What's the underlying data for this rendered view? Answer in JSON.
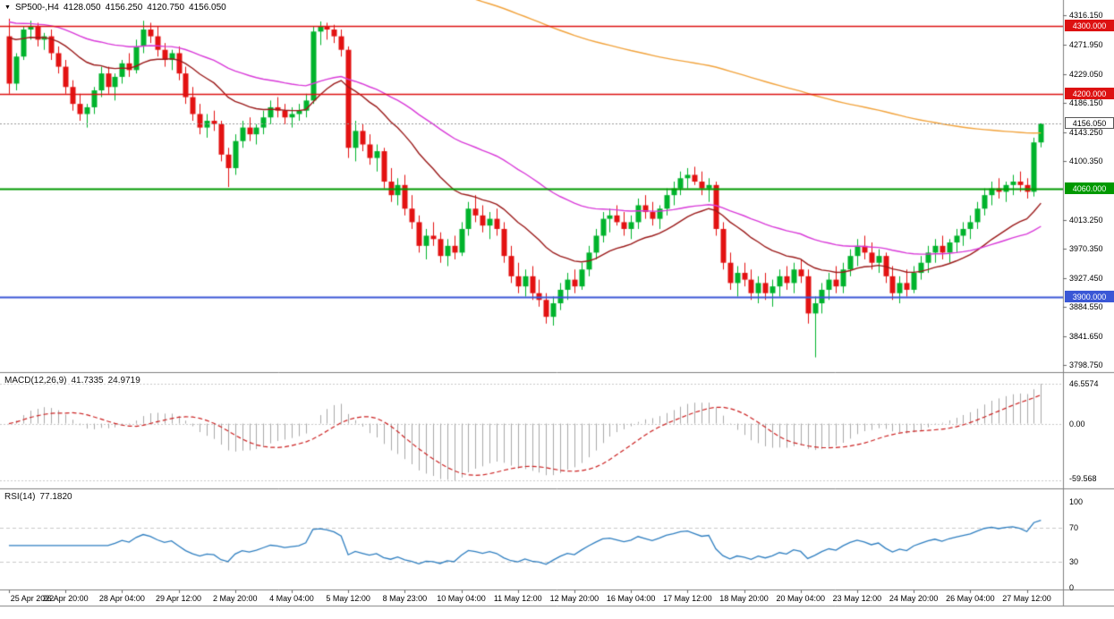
{
  "header": {
    "menu_icon": "▼",
    "symbol": "SP500-,H4",
    "open": "4128.050",
    "high": "4156.250",
    "low": "4120.750",
    "close": "4156.050"
  },
  "indicators": {
    "macd": {
      "label": "MACD(12,26,9)",
      "main_value": "41.7335",
      "signal_value": "24.9719"
    },
    "rsi": {
      "label": "RSI(14)",
      "value": "77.1820"
    }
  },
  "chart_data": {
    "type": "candlestick",
    "symbol": "SP500-,H4",
    "timeframe": "H4",
    "price_range": [
      3788.2,
      4338.7
    ],
    "last_price": 4156.05,
    "candle_colors": {
      "up": "#00b32c",
      "down": "#e31212"
    },
    "y_axis": {
      "ticks": [
        "4316.150",
        "4271.950",
        "4229.050",
        "4186.150",
        "4143.250",
        "4100.350",
        "4013.250",
        "3970.350",
        "3927.450",
        "3884.550",
        "3841.650",
        "3798.750"
      ],
      "badges": [
        {
          "text": "4300.000",
          "value": 4300,
          "bg": "#dd1111",
          "fg": "#ffffff",
          "border": "#dd1111"
        },
        {
          "text": "4200.000",
          "value": 4200,
          "bg": "#dd1111",
          "fg": "#ffffff",
          "border": "#dd1111"
        },
        {
          "text": "4156.050",
          "value": 4156.05,
          "bg": "#ffffff",
          "fg": "#000000",
          "border": "#555555"
        },
        {
          "text": "4060.000",
          "value": 4060,
          "bg": "#009900",
          "fg": "#ffffff",
          "border": "#009900"
        },
        {
          "text": "3900.000",
          "value": 3900,
          "bg": "#3a57d6",
          "fg": "#ffffff",
          "border": "#3a57d6"
        }
      ]
    },
    "x_labels": [
      "25 Apr 2022",
      "26 Apr 20:00",
      "28 Apr 04:00",
      "29 Apr 12:00",
      "2 May 20:00",
      "4 May 04:00",
      "5 May 12:00",
      "8 May 23:00",
      "10 May 04:00",
      "11 May 12:00",
      "12 May 20:00",
      "16 May 04:00",
      "17 May 12:00",
      "18 May 20:00",
      "20 May 04:00",
      "23 May 12:00",
      "24 May 20:00",
      "26 May 04:00",
      "27 May 12:00"
    ],
    "x_label_stride_bars": 8,
    "hlines": [
      {
        "value": 4300,
        "color": "#dd1111",
        "width": 1.5
      },
      {
        "value": 4200,
        "color": "#dd1111",
        "width": 1.5
      },
      {
        "value": 4060,
        "color": "#009900",
        "width": 2
      },
      {
        "value": 3900,
        "color": "#3a57d6",
        "width": 2
      }
    ],
    "moving_averages": [
      {
        "name": "ma-fast",
        "period": 20,
        "seed": 4290,
        "color": "#9b1a1a"
      },
      {
        "name": "ma-medium",
        "period": 50,
        "seed": 4310,
        "color": "#d93ad9"
      },
      {
        "name": "ma-slow",
        "period": 200,
        "seed": 4520,
        "color": "#f2a33c"
      }
    ],
    "macd": {
      "fast": 12,
      "slow": 26,
      "signal_period": 9,
      "hist_color": "#a9a9a9",
      "signal_color": "#cc2222",
      "ticks": {
        "top": "46.5574",
        "zero": "0.00",
        "bottom": "-59.568"
      }
    },
    "rsi": {
      "period": 14,
      "color": "#2f7fc1",
      "levels": [
        70,
        30
      ],
      "ticks": [
        "100",
        "70",
        "30",
        "0"
      ],
      "range": [
        0,
        100
      ]
    },
    "candles": [
      [
        4285,
        4311,
        4200,
        4215
      ],
      [
        4215,
        4260,
        4205,
        4255
      ],
      [
        4255,
        4300,
        4250,
        4295
      ],
      [
        4295,
        4308,
        4280,
        4300
      ],
      [
        4300,
        4305,
        4270,
        4280
      ],
      [
        4280,
        4290,
        4265,
        4285
      ],
      [
        4285,
        4295,
        4250,
        4260
      ],
      [
        4260,
        4270,
        4230,
        4240
      ],
      [
        4240,
        4250,
        4200,
        4210
      ],
      [
        4210,
        4220,
        4175,
        4185
      ],
      [
        4185,
        4200,
        4160,
        4170
      ],
      [
        4170,
        4185,
        4150,
        4180
      ],
      [
        4180,
        4210,
        4170,
        4205
      ],
      [
        4205,
        4240,
        4195,
        4230
      ],
      [
        4230,
        4240,
        4200,
        4210
      ],
      [
        4210,
        4230,
        4190,
        4225
      ],
      [
        4225,
        4250,
        4215,
        4245
      ],
      [
        4245,
        4260,
        4225,
        4235
      ],
      [
        4235,
        4280,
        4230,
        4270
      ],
      [
        4270,
        4308,
        4260,
        4295
      ],
      [
        4295,
        4305,
        4275,
        4285
      ],
      [
        4285,
        4300,
        4255,
        4265
      ],
      [
        4265,
        4275,
        4240,
        4250
      ],
      [
        4250,
        4265,
        4235,
        4260
      ],
      [
        4260,
        4270,
        4220,
        4230
      ],
      [
        4230,
        4240,
        4185,
        4195
      ],
      [
        4195,
        4210,
        4160,
        4170
      ],
      [
        4170,
        4185,
        4140,
        4150
      ],
      [
        4150,
        4170,
        4135,
        4160
      ],
      [
        4160,
        4175,
        4145,
        4155
      ],
      [
        4155,
        4160,
        4100,
        4110
      ],
      [
        4110,
        4120,
        4062,
        4090
      ],
      [
        4090,
        4140,
        4080,
        4130
      ],
      [
        4130,
        4160,
        4120,
        4150
      ],
      [
        4150,
        4165,
        4130,
        4140
      ],
      [
        4140,
        4155,
        4125,
        4150
      ],
      [
        4150,
        4175,
        4140,
        4165
      ],
      [
        4165,
        4190,
        4155,
        4180
      ],
      [
        4180,
        4195,
        4165,
        4175
      ],
      [
        4175,
        4185,
        4155,
        4165
      ],
      [
        4165,
        4180,
        4150,
        4170
      ],
      [
        4170,
        4185,
        4160,
        4175
      ],
      [
        4175,
        4200,
        4165,
        4190
      ],
      [
        4190,
        4300,
        4185,
        4292
      ],
      [
        4292,
        4307,
        4272,
        4300
      ],
      [
        4300,
        4305,
        4280,
        4295
      ],
      [
        4295,
        4302,
        4275,
        4285
      ],
      [
        4285,
        4295,
        4255,
        4265
      ],
      [
        4265,
        4270,
        4105,
        4120
      ],
      [
        4120,
        4160,
        4100,
        4145
      ],
      [
        4145,
        4155,
        4115,
        4125
      ],
      [
        4125,
        4140,
        4095,
        4105
      ],
      [
        4105,
        4125,
        4085,
        4115
      ],
      [
        4115,
        4120,
        4060,
        4070
      ],
      [
        4070,
        4090,
        4040,
        4050
      ],
      [
        4050,
        4075,
        4035,
        4065
      ],
      [
        4065,
        4080,
        4020,
        4030
      ],
      [
        4030,
        4050,
        4000,
        4010
      ],
      [
        4010,
        4020,
        3965,
        3975
      ],
      [
        3975,
        4000,
        3955,
        3990
      ],
      [
        3990,
        4010,
        3975,
        3985
      ],
      [
        3985,
        3995,
        3950,
        3960
      ],
      [
        3960,
        3985,
        3945,
        3975
      ],
      [
        3975,
        3990,
        3955,
        3965
      ],
      [
        3965,
        4010,
        3960,
        4000
      ],
      [
        4000,
        4040,
        3990,
        4030
      ],
      [
        4030,
        4050,
        4010,
        4020
      ],
      [
        4020,
        4035,
        3995,
        4005
      ],
      [
        4005,
        4025,
        3985,
        4015
      ],
      [
        4015,
        4030,
        3990,
        4000
      ],
      [
        4000,
        4010,
        3950,
        3960
      ],
      [
        3960,
        3975,
        3920,
        3930
      ],
      [
        3930,
        3950,
        3905,
        3915
      ],
      [
        3915,
        3940,
        3900,
        3930
      ],
      [
        3930,
        3945,
        3895,
        3905
      ],
      [
        3905,
        3925,
        3885,
        3895
      ],
      [
        3895,
        3905,
        3860,
        3870
      ],
      [
        3870,
        3900,
        3857,
        3890
      ],
      [
        3890,
        3920,
        3880,
        3910
      ],
      [
        3910,
        3935,
        3895,
        3925
      ],
      [
        3925,
        3940,
        3905,
        3915
      ],
      [
        3915,
        3950,
        3910,
        3940
      ],
      [
        3940,
        3975,
        3930,
        3965
      ],
      [
        3965,
        4000,
        3955,
        3990
      ],
      [
        3990,
        4025,
        3980,
        4015
      ],
      [
        4015,
        4030,
        3995,
        4020
      ],
      [
        4020,
        4035,
        4005,
        4010
      ],
      [
        4010,
        4025,
        3990,
        4000
      ],
      [
        4000,
        4020,
        3985,
        4010
      ],
      [
        4010,
        4045,
        4000,
        4035
      ],
      [
        4035,
        4050,
        4015,
        4025
      ],
      [
        4025,
        4040,
        4005,
        4015
      ],
      [
        4015,
        4035,
        4000,
        4030
      ],
      [
        4030,
        4060,
        4020,
        4050
      ],
      [
        4050,
        4070,
        4035,
        4060
      ],
      [
        4060,
        4085,
        4050,
        4075
      ],
      [
        4075,
        4090,
        4060,
        4080
      ],
      [
        4080,
        4092,
        4065,
        4070
      ],
      [
        4070,
        4085,
        4050,
        4060
      ],
      [
        4060,
        4075,
        4040,
        4065
      ],
      [
        4065,
        4070,
        3990,
        4000
      ],
      [
        4000,
        4010,
        3940,
        3950
      ],
      [
        3950,
        3965,
        3910,
        3920
      ],
      [
        3920,
        3945,
        3900,
        3935
      ],
      [
        3935,
        3950,
        3915,
        3925
      ],
      [
        3925,
        3940,
        3895,
        3905
      ],
      [
        3905,
        3930,
        3890,
        3920
      ],
      [
        3920,
        3935,
        3895,
        3905
      ],
      [
        3905,
        3925,
        3885,
        3915
      ],
      [
        3915,
        3940,
        3900,
        3930
      ],
      [
        3930,
        3945,
        3910,
        3920
      ],
      [
        3920,
        3950,
        3905,
        3940
      ],
      [
        3940,
        3955,
        3920,
        3930
      ],
      [
        3930,
        3940,
        3860,
        3875
      ],
      [
        3875,
        3900,
        3810,
        3890
      ],
      [
        3890,
        3920,
        3875,
        3910
      ],
      [
        3910,
        3935,
        3895,
        3925
      ],
      [
        3925,
        3945,
        3905,
        3915
      ],
      [
        3915,
        3950,
        3905,
        3940
      ],
      [
        3940,
        3970,
        3930,
        3960
      ],
      [
        3960,
        3985,
        3945,
        3975
      ],
      [
        3975,
        3990,
        3955,
        3965
      ],
      [
        3965,
        3980,
        3940,
        3950
      ],
      [
        3950,
        3970,
        3935,
        3960
      ],
      [
        3960,
        3965,
        3920,
        3930
      ],
      [
        3930,
        3945,
        3895,
        3905
      ],
      [
        3905,
        3930,
        3890,
        3920
      ],
      [
        3920,
        3940,
        3900,
        3910
      ],
      [
        3910,
        3945,
        3905,
        3935
      ],
      [
        3935,
        3960,
        3925,
        3950
      ],
      [
        3950,
        3975,
        3935,
        3965
      ],
      [
        3965,
        3985,
        3950,
        3975
      ],
      [
        3975,
        3990,
        3955,
        3965
      ],
      [
        3965,
        3985,
        3950,
        3980
      ],
      [
        3980,
        4000,
        3965,
        3990
      ],
      [
        3990,
        4010,
        3975,
        4000
      ],
      [
        4000,
        4020,
        3985,
        4010
      ],
      [
        4010,
        4040,
        4000,
        4030
      ],
      [
        4030,
        4060,
        4020,
        4050
      ],
      [
        4050,
        4070,
        4035,
        4060
      ],
      [
        4060,
        4075,
        4045,
        4055
      ],
      [
        4055,
        4070,
        4040,
        4065
      ],
      [
        4065,
        4080,
        4050,
        4070
      ],
      [
        4070,
        4085,
        4055,
        4065
      ],
      [
        4065,
        4075,
        4045,
        4055
      ],
      [
        4055,
        4135,
        4048,
        4128
      ],
      [
        4128,
        4156.25,
        4120.75,
        4156.05
      ]
    ]
  }
}
